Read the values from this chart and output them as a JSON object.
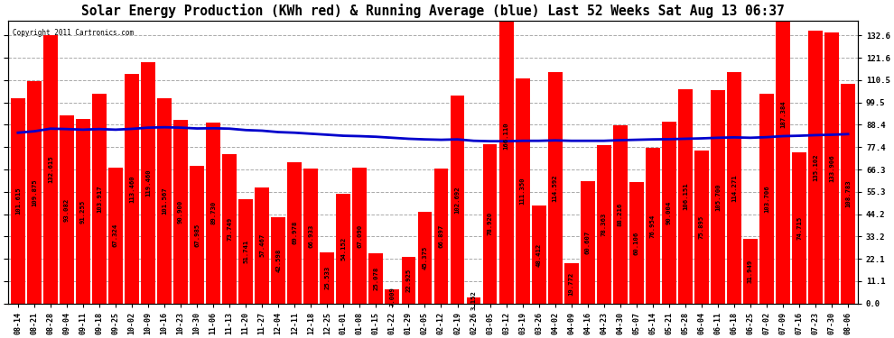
{
  "title": "Solar Energy Production (KWh red) & Running Average (blue) Last 52 Weeks Sat Aug 13 06:37",
  "copyright": "Copyright 2011 Cartronics.com",
  "bar_color": "#ff0000",
  "line_color": "#0000cc",
  "background_color": "#ffffff",
  "plot_bg_color": "#ffffff",
  "grid_color": "#aaaaaa",
  "ylabel_right_ticks": [
    0.0,
    11.1,
    22.1,
    33.2,
    44.2,
    55.3,
    66.3,
    77.4,
    88.4,
    99.5,
    110.5,
    121.6,
    132.6
  ],
  "categories": [
    "08-14",
    "08-21",
    "08-28",
    "09-04",
    "09-11",
    "09-18",
    "09-25",
    "10-02",
    "10-09",
    "10-16",
    "10-23",
    "10-30",
    "11-06",
    "11-13",
    "11-20",
    "11-27",
    "12-04",
    "12-11",
    "12-18",
    "12-25",
    "01-01",
    "01-08",
    "01-15",
    "01-22",
    "01-29",
    "02-05",
    "02-12",
    "02-19",
    "02-26",
    "03-05",
    "03-12",
    "03-19",
    "03-26",
    "04-02",
    "04-09",
    "04-16",
    "04-23",
    "04-30",
    "05-07",
    "05-14",
    "05-21",
    "05-28",
    "06-04",
    "06-11",
    "06-18",
    "06-25",
    "07-02",
    "07-09",
    "07-16",
    "07-23",
    "07-30",
    "08-06"
  ],
  "values": [
    101.615,
    109.875,
    132.615,
    93.082,
    91.255,
    103.917,
    67.324,
    113.46,
    119.46,
    101.567,
    90.9,
    67.985,
    89.73,
    73.749,
    51.741,
    57.467,
    42.598,
    69.978,
    66.933,
    25.533,
    54.152,
    67.09,
    25.078,
    7.009,
    22.925,
    45.375,
    66.897,
    102.692,
    3.152,
    78.92,
    166.11,
    111.35,
    48.412,
    114.592,
    19.772,
    60.607,
    78.363,
    88.216,
    60.106,
    76.954,
    90.004,
    106.151,
    75.895,
    105.7,
    114.271,
    31.949,
    103.706,
    187.384,
    74.715,
    135.102,
    133.906,
    108.783
  ],
  "running_avg": [
    84.5,
    85.2,
    86.5,
    86.3,
    86.0,
    86.3,
    86.0,
    86.4,
    87.0,
    87.2,
    87.0,
    86.6,
    86.7,
    86.5,
    85.8,
    85.5,
    84.8,
    84.5,
    84.0,
    83.5,
    83.0,
    82.8,
    82.5,
    82.0,
    81.5,
    81.2,
    81.0,
    81.2,
    80.5,
    80.3,
    80.3,
    80.5,
    80.5,
    80.7,
    80.5,
    80.5,
    80.5,
    80.8,
    81.0,
    81.2,
    81.3,
    81.5,
    81.7,
    82.0,
    82.2,
    82.0,
    82.3,
    82.8,
    83.0,
    83.3,
    83.5,
    83.8
  ],
  "ylim": [
    0,
    140
  ],
  "title_fontsize": 10.5,
  "tick_fontsize": 6.0,
  "value_fontsize": 5.2
}
